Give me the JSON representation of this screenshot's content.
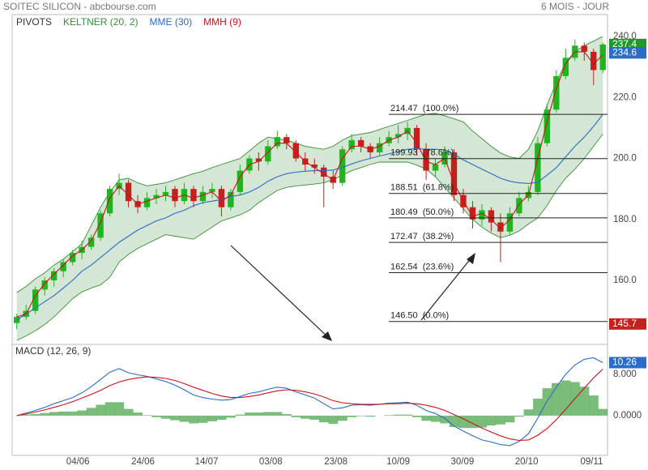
{
  "chart_data": [
    {
      "type": "candlestick",
      "title": "SOITEC SILICON - abcbourse.com",
      "subtitle": "6 MOIS - JOUR",
      "pivots_label": "PIVOTS",
      "up_color": "#1fb51f",
      "down_color": "#c4201c",
      "xlim": [
        -0.5,
        63.5
      ],
      "ylim": [
        139,
        244
      ],
      "yticks": [
        {
          "value": 160,
          "label": "160.0"
        },
        {
          "value": 180,
          "label": "180.0"
        },
        {
          "value": 200,
          "label": "200.0"
        },
        {
          "value": 220,
          "label": "220.0"
        },
        {
          "value": 240,
          "label": "240.0"
        }
      ],
      "grid": true,
      "open": [
        146,
        148,
        150,
        157,
        160,
        163,
        166,
        169,
        171,
        174,
        182,
        190,
        192,
        186,
        184,
        187,
        188,
        190,
        186,
        190,
        186,
        189,
        190,
        184,
        189,
        196,
        200,
        199,
        204,
        207,
        205,
        200,
        198,
        197,
        194,
        192,
        203,
        206,
        204,
        202,
        205,
        207,
        208,
        210,
        203,
        196,
        198,
        202,
        188,
        184,
        180,
        183,
        179,
        176,
        182,
        187,
        189,
        205,
        216,
        227,
        233,
        237,
        235,
        229
      ],
      "high": [
        149,
        152,
        158,
        161,
        164,
        167,
        170,
        173,
        175,
        183,
        191,
        195,
        193,
        188,
        189,
        190,
        191,
        191,
        192,
        191,
        191,
        192,
        191,
        190,
        198,
        201,
        202,
        206,
        209,
        208,
        206,
        202,
        200,
        198,
        196,
        204,
        208,
        207,
        205,
        207,
        209,
        211,
        212,
        211,
        205,
        200,
        204,
        203,
        190,
        186,
        185,
        184,
        182,
        184,
        189,
        191,
        207,
        218,
        229,
        236,
        239,
        238,
        236,
        238
      ],
      "low": [
        144,
        147,
        149,
        155,
        158,
        161,
        165,
        167,
        170,
        173,
        181,
        188,
        184,
        182,
        183,
        185,
        186,
        184,
        185,
        184,
        185,
        187,
        181,
        183,
        188,
        195,
        196,
        198,
        203,
        203,
        199,
        196,
        195,
        184,
        190,
        191,
        202,
        202,
        200,
        201,
        204,
        205,
        206,
        201,
        193,
        194,
        197,
        186,
        182,
        177,
        178,
        176,
        166,
        175,
        181,
        186,
        188,
        204,
        215,
        226,
        232,
        232,
        224,
        228
      ],
      "close": [
        148,
        150,
        157,
        160,
        163,
        166,
        169,
        171,
        174,
        182,
        190,
        192,
        186,
        184,
        187,
        188,
        189,
        186,
        190,
        186,
        189,
        190,
        184,
        189,
        196,
        200,
        199,
        204,
        207,
        205,
        200,
        198,
        197,
        194,
        192,
        203,
        206,
        204,
        202,
        205,
        207,
        208,
        210,
        203,
        196,
        198,
        202,
        188,
        184,
        180,
        183,
        179,
        176,
        182,
        187,
        189,
        205,
        216,
        227,
        233,
        237,
        235,
        229,
        237.4
      ],
      "bands": {
        "name": "KELTNER (20, 2)",
        "color": "#3a8f3a",
        "upper": [
          156,
          158,
          160.5,
          162.5,
          165,
          167,
          169.5,
          172,
          178,
          184,
          189,
          193,
          193.5,
          192,
          191,
          191.5,
          192,
          193,
          194,
          195,
          195.8,
          197,
          198,
          199,
          200,
          202.5,
          205,
          207,
          206.5,
          206,
          205,
          204,
          203.5,
          203,
          204,
          206,
          207.5,
          208,
          208.5,
          209.5,
          210.5,
          211.5,
          212.5,
          213.5,
          214.5,
          214.8,
          214,
          213,
          212,
          209,
          206.5,
          204,
          201.8,
          200.5,
          200,
          203,
          209,
          217.5,
          225,
          231.5,
          235,
          237,
          238.5,
          240
        ],
        "lower": [
          140.3,
          141.8,
          143.5,
          145.5,
          148,
          151,
          154,
          156.2,
          157.5,
          158.5,
          161,
          166,
          168.5,
          170.5,
          172,
          173.5,
          175,
          174.5,
          174,
          173.5,
          175.5,
          177.5,
          179.5,
          180.5,
          181.5,
          183,
          185.5,
          187.5,
          189.5,
          190.5,
          191,
          191.3,
          191.6,
          192,
          193,
          194.5,
          196,
          197,
          198,
          198.8,
          198.8,
          198.8,
          198.8,
          197.8,
          196.5,
          194,
          190.5,
          187,
          183.5,
          180,
          177.5,
          175.5,
          174,
          174.8,
          176.2,
          178.5,
          180.5,
          184.5,
          189.5,
          193.5,
          196.5,
          200,
          204,
          208
        ]
      },
      "series": [
        {
          "name": "MME (30)",
          "color": "#2b6cc4",
          "values": [
            147,
            149,
            151,
            153,
            155,
            157.5,
            160,
            163,
            165,
            167.5,
            170,
            172.5,
            174.5,
            176.5,
            178,
            179.5,
            180.5,
            182,
            183,
            184.5,
            185.5,
            186,
            186.5,
            187.5,
            188,
            189,
            190.5,
            192.5,
            194,
            195,
            195.5,
            195.8,
            196,
            196,
            196.2,
            197,
            198.2,
            199.2,
            200,
            200.8,
            201.5,
            202.3,
            203,
            203.2,
            203,
            203,
            202.8,
            201.5,
            199.5,
            198,
            196.5,
            195,
            193.5,
            192.5,
            192,
            191.8,
            192.2,
            194.5,
            197,
            200.5,
            204,
            207,
            210.5,
            214.5
          ]
        },
        {
          "name": "MMH (9)",
          "color": "#c8141e",
          "values": [
            148,
            149,
            155,
            159,
            162,
            165,
            168,
            170,
            173,
            179,
            187,
            191,
            188,
            185,
            186,
            187,
            188,
            187,
            188,
            187,
            188,
            189,
            186,
            188,
            194,
            198,
            199,
            202,
            205,
            205,
            202,
            199,
            197,
            195,
            193,
            200,
            204,
            204,
            203,
            204,
            206,
            207,
            209,
            205,
            199,
            198,
            200,
            192,
            186,
            181,
            182,
            180,
            177,
            180,
            185,
            188,
            200,
            212,
            223,
            231,
            235,
            235,
            231,
            234
          ]
        }
      ],
      "fibonacci": [
        {
          "value": 214.47,
          "label": "214.47  (100.0%)"
        },
        {
          "value": 199.93,
          "label": "199.93  (78.6%)"
        },
        {
          "value": 188.51,
          "label": "188.51  (61.8%)"
        },
        {
          "value": 180.49,
          "label": "180.49  (50.0%)"
        },
        {
          "value": 172.47,
          "label": "172.47  (38.2%)"
        },
        {
          "value": 162.54,
          "label": "162.54  (23.6%)"
        },
        {
          "value": 146.5,
          "label": "146.50  (0.0%)"
        }
      ],
      "price_tags": [
        {
          "value": 237.4,
          "color": "#1f9a2a"
        },
        {
          "value": 234.6,
          "color": "#2b6cc4"
        },
        {
          "value": 145.7,
          "color": "#c4201c"
        }
      ]
    },
    {
      "type": "macd",
      "title": "MACD (12, 26, 9)",
      "xlim": [
        -0.5,
        63.5
      ],
      "ylim": [
        -7.7,
        13.0
      ],
      "yticks": [
        {
          "value": 0,
          "label": "0.0000"
        },
        {
          "value": 8,
          "label": "8.000"
        }
      ],
      "xticks": [
        {
          "value": 6.57,
          "label": "04/06"
        },
        {
          "value": 13.56,
          "label": "24/06"
        },
        {
          "value": 20.4,
          "label": "14/07"
        },
        {
          "value": 27.3,
          "label": "03/08"
        },
        {
          "value": 34.3,
          "label": "23/08"
        },
        {
          "value": 41.0,
          "label": "10/09"
        },
        {
          "value": 47.9,
          "label": "30/09"
        },
        {
          "value": 54.8,
          "label": "20/10"
        },
        {
          "value": 61.8,
          "label": "09/11"
        }
      ],
      "histogram": {
        "color": "#4ea64e",
        "values": [
          0,
          0.2,
          0.3,
          0.5,
          0.7,
          0.8,
          0.8,
          1.0,
          1.5,
          2.1,
          2.6,
          2.6,
          1.3,
          0.6,
          0.1,
          -0.3,
          -0.6,
          -0.9,
          -1.2,
          -1.5,
          -1.4,
          -1.1,
          -0.8,
          -0.4,
          0.2,
          0.6,
          0.6,
          0.7,
          0.7,
          0.3,
          -0.3,
          -0.6,
          -0.8,
          -1.3,
          -1.6,
          -1.0,
          -0.3,
          -0.1,
          -0.2,
          0.0,
          0.1,
          0.2,
          0.2,
          -0.3,
          -1.0,
          -1.2,
          -1.5,
          -2.2,
          -2.4,
          -2.4,
          -2.3,
          -1.9,
          -1.7,
          -1.3,
          -0.2,
          1.2,
          3.3,
          5.3,
          6.3,
          6.8,
          6.5,
          5.6,
          3.9,
          1.3
        ]
      },
      "series": [
        {
          "color": "#2b6cc4",
          "values": [
            0.0,
            0.5,
            1.0,
            1.6,
            2.3,
            2.9,
            3.5,
            4.4,
            5.6,
            7.0,
            8.4,
            9.1,
            8.3,
            7.9,
            7.6,
            7.1,
            6.6,
            5.9,
            5.0,
            4.0,
            3.5,
            3.2,
            3.0,
            3.1,
            3.7,
            4.3,
            4.6,
            5.1,
            5.5,
            5.3,
            4.6,
            4.0,
            3.4,
            2.3,
            1.3,
            1.5,
            2.0,
            2.1,
            2.0,
            2.2,
            2.4,
            2.5,
            2.6,
            2.0,
            1.0,
            0.4,
            -0.5,
            -2.0,
            -3.0,
            -3.9,
            -4.7,
            -5.1,
            -5.6,
            -5.8,
            -5.0,
            -3.5,
            -0.5,
            2.8,
            5.5,
            8.0,
            9.8,
            10.9,
            11.2,
            10.26
          ]
        },
        {
          "color": "#c8141e",
          "values": [
            0.0,
            0.3,
            0.7,
            1.1,
            1.6,
            2.1,
            2.7,
            3.4,
            4.1,
            4.9,
            5.8,
            6.5,
            7.0,
            7.3,
            7.5,
            7.4,
            7.2,
            6.8,
            6.2,
            5.5,
            4.9,
            4.3,
            3.8,
            3.5,
            3.5,
            3.7,
            4.0,
            4.4,
            4.8,
            5.0,
            4.9,
            4.6,
            4.2,
            3.6,
            2.9,
            2.5,
            2.3,
            2.2,
            2.2,
            2.2,
            2.3,
            2.3,
            2.4,
            2.3,
            2.0,
            1.6,
            1.0,
            0.2,
            -0.6,
            -1.5,
            -2.4,
            -3.2,
            -3.9,
            -4.5,
            -4.8,
            -4.7,
            -3.8,
            -2.5,
            -0.8,
            1.2,
            3.3,
            5.3,
            7.3,
            9.0
          ]
        }
      ],
      "tags": [
        {
          "value": 10.26,
          "color": "#2b6cc4"
        }
      ]
    }
  ]
}
